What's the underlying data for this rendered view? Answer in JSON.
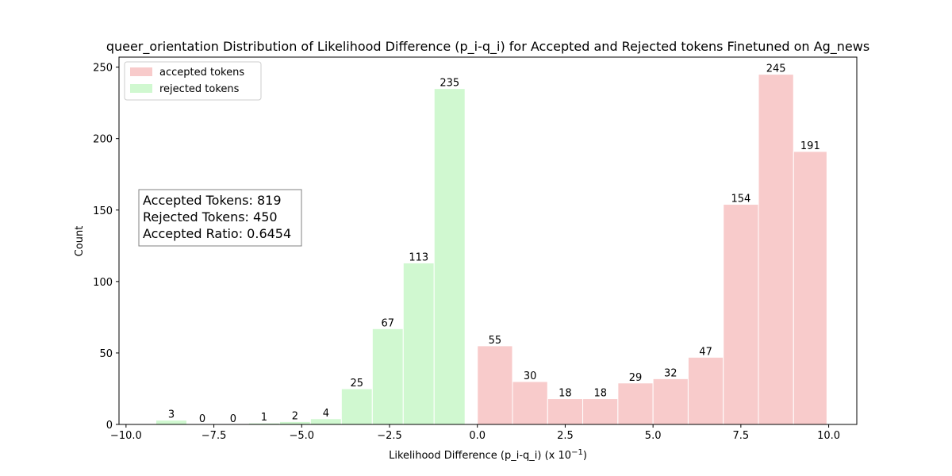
{
  "chart_data": {
    "type": "bar",
    "title": "queer_orientation Distribution of Likelihood Difference (p_i-q_i) for Accepted and Rejected tokens Finetuned on Ag_news",
    "xlabel": "Likelihood Difference (p_i-q_i) (x 10",
    "xlabel_exponent": "−1",
    "xlabel_suffix": ")",
    "ylabel": "Count",
    "xlim": [
      -10.2,
      10.8
    ],
    "ylim": [
      0,
      257
    ],
    "x_ticks": [
      -10.0,
      -7.5,
      -5.0,
      -2.5,
      0.0,
      2.5,
      5.0,
      7.5,
      10.0
    ],
    "x_tick_labels": [
      "−10.0",
      "−7.5",
      "−5.0",
      "−2.5",
      "0.0",
      "2.5",
      "5.0",
      "7.5",
      "10.0"
    ],
    "y_ticks": [
      0,
      50,
      100,
      150,
      200,
      250
    ],
    "y_tick_labels": [
      "0",
      "50",
      "100",
      "150",
      "200",
      "250"
    ],
    "legend_position": "top-left",
    "series": [
      {
        "name": "accepted tokens",
        "color": "#f8cbcb",
        "bins": [
          {
            "x0": 0.0,
            "x1": 1.0,
            "value": 55,
            "label": "55"
          },
          {
            "x0": 1.0,
            "x1": 2.0,
            "value": 30,
            "label": "30"
          },
          {
            "x0": 2.0,
            "x1": 3.0,
            "value": 18,
            "label": "18"
          },
          {
            "x0": 3.0,
            "x1": 4.0,
            "value": 18,
            "label": "18"
          },
          {
            "x0": 4.0,
            "x1": 5.0,
            "value": 29,
            "label": "29"
          },
          {
            "x0": 5.0,
            "x1": 6.0,
            "value": 32,
            "label": "32"
          },
          {
            "x0": 6.0,
            "x1": 7.0,
            "value": 47,
            "label": "47"
          },
          {
            "x0": 7.0,
            "x1": 8.0,
            "value": 154,
            "label": "154"
          },
          {
            "x0": 8.0,
            "x1": 9.0,
            "value": 245,
            "label": "245"
          },
          {
            "x0": 9.0,
            "x1": 9.95,
            "value": 191,
            "label": "191"
          }
        ]
      },
      {
        "name": "rejected tokens",
        "color": "#d0f8d0",
        "bins": [
          {
            "x0": -9.15,
            "x1": -8.27,
            "value": 3,
            "label": "3"
          },
          {
            "x0": -8.27,
            "x1": -7.39,
            "value": 0,
            "label": "0"
          },
          {
            "x0": -7.39,
            "x1": -6.51,
            "value": 0,
            "label": "0"
          },
          {
            "x0": -6.51,
            "x1": -5.63,
            "value": 1,
            "label": "1"
          },
          {
            "x0": -5.63,
            "x1": -4.75,
            "value": 2,
            "label": "2"
          },
          {
            "x0": -4.75,
            "x1": -3.87,
            "value": 4,
            "label": "4"
          },
          {
            "x0": -3.87,
            "x1": -2.99,
            "value": 25,
            "label": "25"
          },
          {
            "x0": -2.99,
            "x1": -2.11,
            "value": 67,
            "label": "67"
          },
          {
            "x0": -2.11,
            "x1": -1.23,
            "value": 113,
            "label": "113"
          },
          {
            "x0": -1.23,
            "x1": -0.35,
            "value": 235,
            "label": "235"
          }
        ]
      }
    ],
    "stats_box": {
      "lines": [
        "Accepted Tokens: 819",
        "Rejected Tokens: 450",
        "Accepted Ratio: 0.6454"
      ]
    }
  }
}
